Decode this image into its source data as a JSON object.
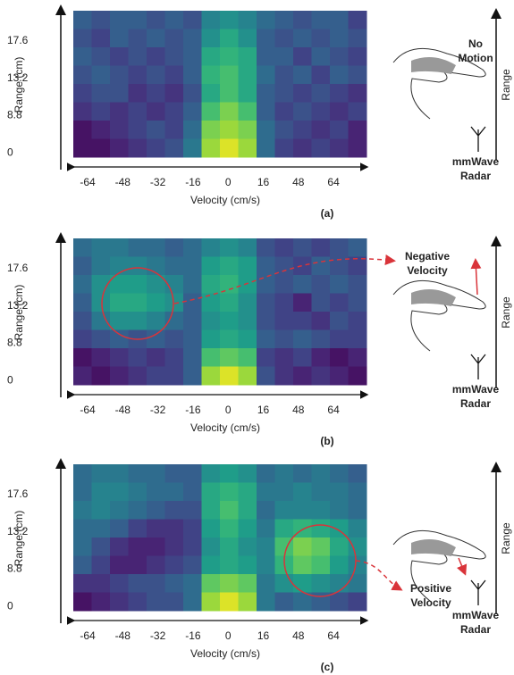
{
  "chart_data": [
    {
      "type": "heatmap",
      "colormap": "viridis",
      "xlabel": "Velocity (cm/s)",
      "ylabel": "Range (cm)",
      "xticks": [
        "-64",
        "-48",
        "-32",
        "-16",
        "0",
        "16",
        "48",
        "64"
      ],
      "yticks": [
        "17.6",
        "13.2",
        "8.8",
        "0"
      ],
      "caption": "(a)",
      "annotation": [
        "No",
        "Motion"
      ],
      "range_label": "Range",
      "radar_label": [
        "mmWave",
        "Radar"
      ],
      "z": [
        [
          0.3,
          0.25,
          0.3,
          0.3,
          0.25,
          0.3,
          0.25,
          0.45,
          0.5,
          0.45,
          0.35,
          0.3,
          0.25,
          0.3,
          0.3,
          0.2
        ],
        [
          0.25,
          0.2,
          0.3,
          0.25,
          0.3,
          0.25,
          0.3,
          0.5,
          0.6,
          0.5,
          0.3,
          0.25,
          0.3,
          0.25,
          0.3,
          0.25
        ],
        [
          0.3,
          0.25,
          0.2,
          0.25,
          0.2,
          0.25,
          0.3,
          0.6,
          0.65,
          0.6,
          0.3,
          0.3,
          0.2,
          0.3,
          0.25,
          0.2
        ],
        [
          0.25,
          0.3,
          0.25,
          0.2,
          0.25,
          0.2,
          0.3,
          0.65,
          0.7,
          0.6,
          0.35,
          0.25,
          0.3,
          0.2,
          0.3,
          0.25
        ],
        [
          0.2,
          0.25,
          0.25,
          0.15,
          0.2,
          0.15,
          0.25,
          0.6,
          0.7,
          0.6,
          0.3,
          0.25,
          0.2,
          0.25,
          0.2,
          0.15
        ],
        [
          0.15,
          0.2,
          0.15,
          0.2,
          0.15,
          0.2,
          0.3,
          0.7,
          0.8,
          0.7,
          0.3,
          0.2,
          0.25,
          0.2,
          0.15,
          0.2
        ],
        [
          0.05,
          0.1,
          0.15,
          0.2,
          0.25,
          0.2,
          0.35,
          0.8,
          0.85,
          0.8,
          0.35,
          0.25,
          0.2,
          0.15,
          0.2,
          0.1
        ],
        [
          0.05,
          0.05,
          0.1,
          0.15,
          0.2,
          0.25,
          0.4,
          0.85,
          0.95,
          0.85,
          0.35,
          0.2,
          0.15,
          0.2,
          0.15,
          0.1
        ]
      ]
    },
    {
      "type": "heatmap",
      "colormap": "viridis",
      "xlabel": "Velocity (cm/s)",
      "ylabel": "Range (cm)",
      "xticks": [
        "-64",
        "-48",
        "-32",
        "-16",
        "0",
        "16",
        "48",
        "64"
      ],
      "yticks": [
        "17.6",
        "13.2",
        "8.8",
        "0"
      ],
      "caption": "(b)",
      "annotation": [
        "Negative",
        "Velocity"
      ],
      "range_label": "Range",
      "radar_label": [
        "mmWave",
        "Radar"
      ],
      "z": [
        [
          0.35,
          0.4,
          0.4,
          0.35,
          0.35,
          0.3,
          0.35,
          0.45,
          0.5,
          0.45,
          0.25,
          0.2,
          0.25,
          0.2,
          0.25,
          0.3
        ],
        [
          0.3,
          0.4,
          0.45,
          0.45,
          0.4,
          0.35,
          0.35,
          0.55,
          0.6,
          0.55,
          0.3,
          0.25,
          0.2,
          0.3,
          0.25,
          0.2
        ],
        [
          0.35,
          0.5,
          0.55,
          0.55,
          0.5,
          0.45,
          0.35,
          0.6,
          0.65,
          0.55,
          0.3,
          0.25,
          0.3,
          0.25,
          0.3,
          0.25
        ],
        [
          0.3,
          0.5,
          0.6,
          0.6,
          0.55,
          0.5,
          0.3,
          0.55,
          0.6,
          0.5,
          0.25,
          0.2,
          0.1,
          0.25,
          0.2,
          0.25
        ],
        [
          0.25,
          0.4,
          0.5,
          0.5,
          0.45,
          0.35,
          0.3,
          0.5,
          0.55,
          0.5,
          0.25,
          0.2,
          0.2,
          0.15,
          0.25,
          0.2
        ],
        [
          0.2,
          0.25,
          0.3,
          0.25,
          0.3,
          0.25,
          0.3,
          0.55,
          0.6,
          0.55,
          0.3,
          0.25,
          0.3,
          0.25,
          0.2,
          0.2
        ],
        [
          0.05,
          0.1,
          0.15,
          0.2,
          0.15,
          0.2,
          0.3,
          0.7,
          0.75,
          0.7,
          0.2,
          0.15,
          0.2,
          0.1,
          0.05,
          0.1
        ],
        [
          0.1,
          0.05,
          0.1,
          0.15,
          0.2,
          0.2,
          0.3,
          0.85,
          0.95,
          0.85,
          0.25,
          0.15,
          0.1,
          0.15,
          0.1,
          0.05
        ]
      ]
    },
    {
      "type": "heatmap",
      "colormap": "viridis",
      "xlabel": "Velocity (cm/s)",
      "ylabel": "Range (cm)",
      "xticks": [
        "-64",
        "-48",
        "-32",
        "-16",
        "0",
        "16",
        "48",
        "64"
      ],
      "yticks": [
        "17.6",
        "13.2",
        "8.8",
        "0"
      ],
      "caption": "(c)",
      "annotation": [
        "Positive",
        "Velocity"
      ],
      "range_label": "Range",
      "radar_label": [
        "mmWave",
        "Radar"
      ],
      "z": [
        [
          0.35,
          0.4,
          0.4,
          0.35,
          0.35,
          0.3,
          0.3,
          0.5,
          0.55,
          0.5,
          0.35,
          0.4,
          0.35,
          0.4,
          0.35,
          0.3
        ],
        [
          0.35,
          0.45,
          0.45,
          0.4,
          0.35,
          0.35,
          0.3,
          0.6,
          0.65,
          0.6,
          0.4,
          0.4,
          0.45,
          0.4,
          0.4,
          0.35
        ],
        [
          0.4,
          0.45,
          0.4,
          0.35,
          0.3,
          0.25,
          0.25,
          0.6,
          0.7,
          0.6,
          0.35,
          0.45,
          0.45,
          0.45,
          0.4,
          0.35
        ],
        [
          0.35,
          0.35,
          0.3,
          0.2,
          0.15,
          0.15,
          0.2,
          0.55,
          0.65,
          0.55,
          0.4,
          0.6,
          0.65,
          0.6,
          0.55,
          0.45
        ],
        [
          0.35,
          0.25,
          0.15,
          0.1,
          0.1,
          0.15,
          0.2,
          0.5,
          0.6,
          0.5,
          0.45,
          0.7,
          0.8,
          0.75,
          0.6,
          0.5
        ],
        [
          0.3,
          0.2,
          0.1,
          0.1,
          0.15,
          0.2,
          0.25,
          0.55,
          0.6,
          0.55,
          0.45,
          0.65,
          0.75,
          0.7,
          0.55,
          0.45
        ],
        [
          0.15,
          0.15,
          0.2,
          0.25,
          0.25,
          0.3,
          0.35,
          0.75,
          0.8,
          0.75,
          0.4,
          0.5,
          0.55,
          0.5,
          0.45,
          0.4
        ],
        [
          0.05,
          0.1,
          0.15,
          0.2,
          0.25,
          0.25,
          0.35,
          0.85,
          0.95,
          0.85,
          0.4,
          0.3,
          0.35,
          0.3,
          0.25,
          0.2
        ]
      ]
    }
  ]
}
